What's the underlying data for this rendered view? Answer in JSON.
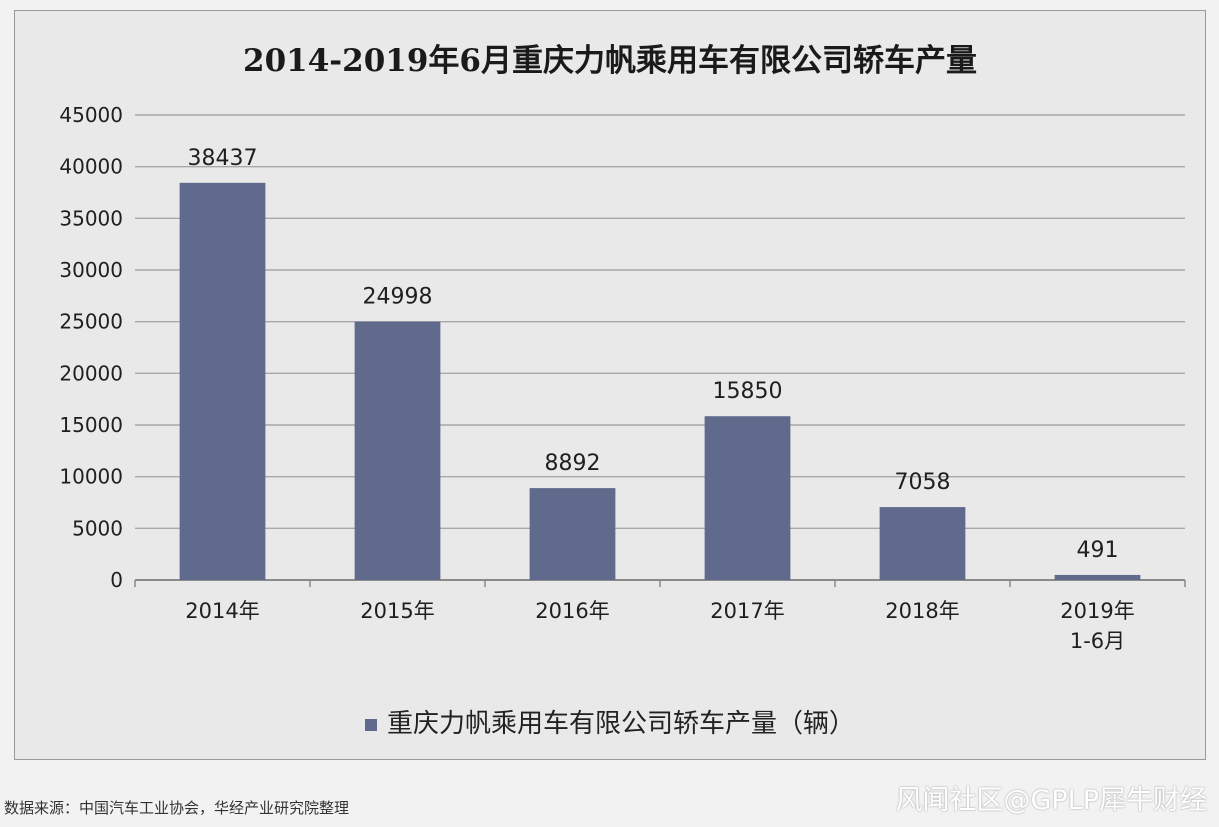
{
  "chart_data": {
    "type": "bar",
    "title": "2014-2019年6月重庆力帆乘用车有限公司轿车产量",
    "categories": [
      "2014年",
      "2015年",
      "2016年",
      "2017年",
      "2018年",
      "2019年\n1-6月"
    ],
    "series": [
      {
        "name": "重庆力帆乘用车有限公司轿车产量（辆）",
        "values": [
          38437,
          24998,
          8892,
          15850,
          7058,
          491
        ]
      }
    ],
    "ylim": [
      0,
      45000
    ],
    "yticks": [
      0,
      5000,
      10000,
      15000,
      20000,
      25000,
      30000,
      35000,
      40000,
      45000
    ],
    "grid": true,
    "legend_position": "bottom",
    "bar_color": "#5f6a8c"
  },
  "footer": {
    "source": "数据来源：中国汽车工业协会，华经产业研究院整理",
    "watermark": "风闻社区@GPLP犀牛财经"
  }
}
